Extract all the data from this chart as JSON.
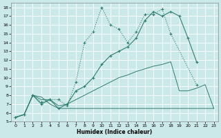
{
  "xlabel": "Humidex (Indice chaleur)",
  "background_color": "#cce9e9",
  "grid_color": "#ffffff",
  "line_color": "#2e7d6e",
  "xlim": [
    -0.5,
    23.5
  ],
  "ylim": [
    5,
    18.5
  ],
  "xticks": [
    0,
    1,
    2,
    3,
    4,
    5,
    6,
    7,
    8,
    9,
    10,
    11,
    12,
    13,
    14,
    15,
    16,
    17,
    18,
    19,
    20,
    21,
    22,
    23
  ],
  "yticks": [
    5,
    6,
    7,
    8,
    9,
    10,
    11,
    12,
    13,
    14,
    15,
    16,
    17,
    18
  ],
  "line_spiky_x": [
    0,
    1,
    2,
    3,
    4,
    5,
    6,
    7,
    8,
    9,
    10,
    11,
    12,
    13,
    14,
    15,
    16,
    17,
    18,
    21
  ],
  "line_spiky_y": [
    5.5,
    5.8,
    8.0,
    7.2,
    7.5,
    7.5,
    6.8,
    9.5,
    14.0,
    15.2,
    18.0,
    16.0,
    15.5,
    14.0,
    15.2,
    17.2,
    17.2,
    17.8,
    15.0,
    9.2
  ],
  "line_solid_marker_x": [
    0,
    1,
    2,
    3,
    4,
    5,
    6,
    7,
    8,
    9,
    10,
    11,
    12,
    13,
    14,
    15,
    16,
    17,
    18,
    19,
    20,
    21
  ],
  "line_solid_marker_y": [
    5.5,
    5.8,
    8.0,
    7.0,
    7.5,
    6.5,
    7.0,
    8.5,
    9.0,
    10.0,
    11.5,
    12.5,
    13.0,
    13.5,
    14.5,
    16.5,
    17.5,
    17.0,
    17.5,
    17.0,
    14.5,
    11.8
  ],
  "line_flat_x": [
    0,
    1,
    2,
    3,
    4,
    5,
    6,
    7,
    8,
    9,
    10,
    11,
    12,
    13,
    14,
    15,
    16,
    17,
    18,
    19,
    20,
    21,
    22,
    23
  ],
  "line_flat_y": [
    5.5,
    5.8,
    8.0,
    7.8,
    7.0,
    6.5,
    6.5,
    6.5,
    6.5,
    6.5,
    6.5,
    6.5,
    6.5,
    6.5,
    6.5,
    6.5,
    6.5,
    6.5,
    6.5,
    6.5,
    6.5,
    6.5,
    6.5,
    6.5
  ],
  "line_grad_x": [
    0,
    1,
    2,
    3,
    4,
    5,
    6,
    7,
    8,
    9,
    10,
    11,
    12,
    13,
    14,
    15,
    16,
    17,
    18,
    19,
    20,
    21,
    22,
    23
  ],
  "line_grad_y": [
    5.5,
    5.8,
    8.0,
    7.5,
    7.5,
    6.8,
    7.0,
    7.5,
    8.0,
    8.5,
    9.0,
    9.5,
    10.0,
    10.3,
    10.7,
    11.0,
    11.3,
    11.5,
    11.8,
    8.5,
    8.5,
    8.8,
    9.2,
    6.5
  ]
}
